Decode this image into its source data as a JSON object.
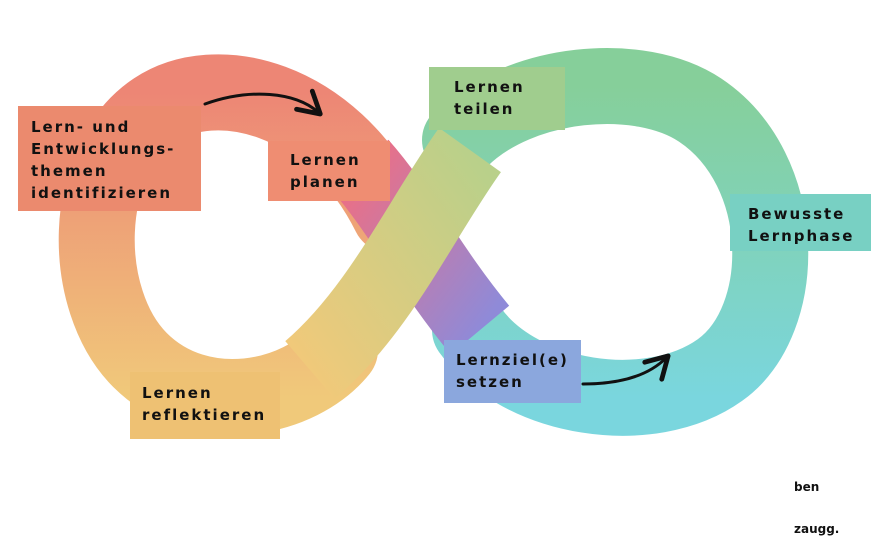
{
  "diagram": {
    "steps": [
      {
        "id": "identify",
        "label": "Lern- und\nEntwicklungs-\nthemen\nidentifizieren",
        "color": "#eb8a6e"
      },
      {
        "id": "plan",
        "label": "Lernen\nplanen",
        "color": "#ef8d72"
      },
      {
        "id": "share",
        "label": "Lernen\nteilen",
        "color": "#a0cd8e"
      },
      {
        "id": "aware",
        "label": "Bewusste\nLernphase",
        "color": "#78d0c3"
      },
      {
        "id": "goal",
        "label": "Lernziel(e)\nsetzen",
        "color": "#8ba7dd"
      },
      {
        "id": "reflect",
        "label": "Lernen\nreflektieren",
        "color": "#eec173"
      }
    ],
    "gradient_colors": {
      "left_top": "#ed8675",
      "left_bottom": "#f0c97a",
      "cross_pink": "#ec6f85",
      "cross_green": "#b9d08a",
      "right_top": "#86cf9a",
      "right_bottom": "#7ad6de",
      "cross_purple": "#8f8ad8"
    },
    "arrow_color": "#111111"
  },
  "brand": {
    "line1": "ben",
    "line2": "zaugg."
  }
}
